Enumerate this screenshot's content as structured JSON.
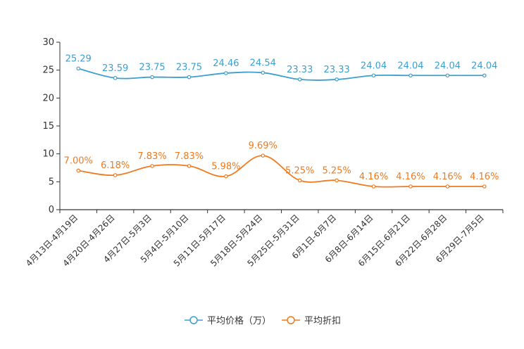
{
  "chart_data": {
    "type": "line",
    "title": "",
    "xlabel": "",
    "ylabel": "",
    "ylim": [
      0,
      30
    ],
    "yticks": [
      0,
      5,
      10,
      15,
      20,
      25,
      30
    ],
    "categories": [
      "4月13日-4月19日",
      "4月20日-4月26日",
      "4月27日-5月3日",
      "5月4日-5月10日",
      "5月11日-5月17日",
      "5月18日-5月24日",
      "5月25日-5月31日",
      "6月1日-6月7日",
      "6月8日-6月14日",
      "6月15日-6月21日",
      "6月22日-6月28日",
      "6月29日-7月5日"
    ],
    "series": [
      {
        "name": "平均价格（万）",
        "color": "#3c9fcf",
        "values": [
          25.29,
          23.59,
          23.75,
          23.75,
          24.46,
          24.54,
          23.33,
          23.33,
          24.04,
          24.04,
          24.04,
          24.04
        ],
        "labels": [
          "25.29",
          "23.59",
          "23.75",
          "23.75",
          "24.46",
          "24.54",
          "23.33",
          "23.33",
          "24.04",
          "24.04",
          "24.04",
          "24.04"
        ]
      },
      {
        "name": "平均折扣",
        "color": "#f07a1f",
        "values": [
          7.0,
          6.18,
          7.83,
          7.83,
          5.98,
          9.69,
          5.25,
          5.25,
          4.16,
          4.16,
          4.16,
          4.16
        ],
        "labels": [
          "7.00%",
          "6.18%",
          "7.83%",
          "7.83%",
          "5.98%",
          "9.69%",
          "5.25%",
          "5.25%",
          "4.16%",
          "4.16%",
          "4.16%",
          "4.16%"
        ]
      }
    ],
    "legend_position": "bottom-center"
  }
}
